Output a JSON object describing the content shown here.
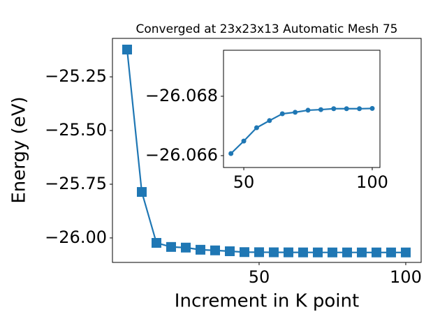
{
  "chart_data": [
    {
      "type": "line",
      "title": "Converged at 23x23x13 Automatic Mesh 75",
      "x_label": "Increment in K point",
      "y_label": "Energy (eV)",
      "x": [
        5,
        10,
        15,
        20,
        25,
        30,
        35,
        40,
        45,
        50,
        55,
        60,
        65,
        70,
        75,
        80,
        85,
        90,
        95,
        100
      ],
      "series": [
        {
          "color": "#1f77b4",
          "marker": "square",
          "values": [
            -25.123,
            -25.786,
            -26.023,
            -26.042,
            -26.045,
            -26.055,
            -26.058,
            -26.062,
            -26.06607,
            -26.06649,
            -26.06694,
            -26.06718,
            -26.06741,
            -26.06746,
            -26.06753,
            -26.06755,
            -26.06758,
            -26.06758,
            -26.06758,
            -26.06759
          ]
        }
      ],
      "xlim": [
        0,
        105.25
      ],
      "xticks": [
        50,
        100
      ],
      "ylim": [
        -26.114,
        -25.071
      ],
      "yticks": [
        {
          "value": -25.25,
          "label": "−25.25"
        },
        {
          "value": -25.5,
          "label": "−25.50"
        },
        {
          "value": -25.75,
          "label": "−25.75"
        },
        {
          "value": -26.0,
          "label": "−26.00"
        }
      ],
      "grid": false
    },
    {
      "type": "line",
      "x": [
        45,
        50,
        55,
        60,
        65,
        70,
        75,
        80,
        85,
        90,
        95,
        100
      ],
      "series": [
        {
          "color": "#1f77b4",
          "marker": "circle",
          "values": [
            -26.06607,
            -26.06649,
            -26.06694,
            -26.06718,
            -26.06741,
            -26.06746,
            -26.06753,
            -26.06755,
            -26.06758,
            -26.06758,
            -26.06758,
            -26.06759
          ]
        }
      ],
      "xlim": [
        42.1,
        103.0
      ],
      "xticks": [
        50,
        100
      ],
      "ylim": [
        -26.0656,
        -26.06955
      ],
      "yticks": [
        {
          "value": -26.068,
          "label": "−26.068"
        },
        {
          "value": -26.066,
          "label": "−26.066"
        }
      ],
      "grid": false
    }
  ]
}
